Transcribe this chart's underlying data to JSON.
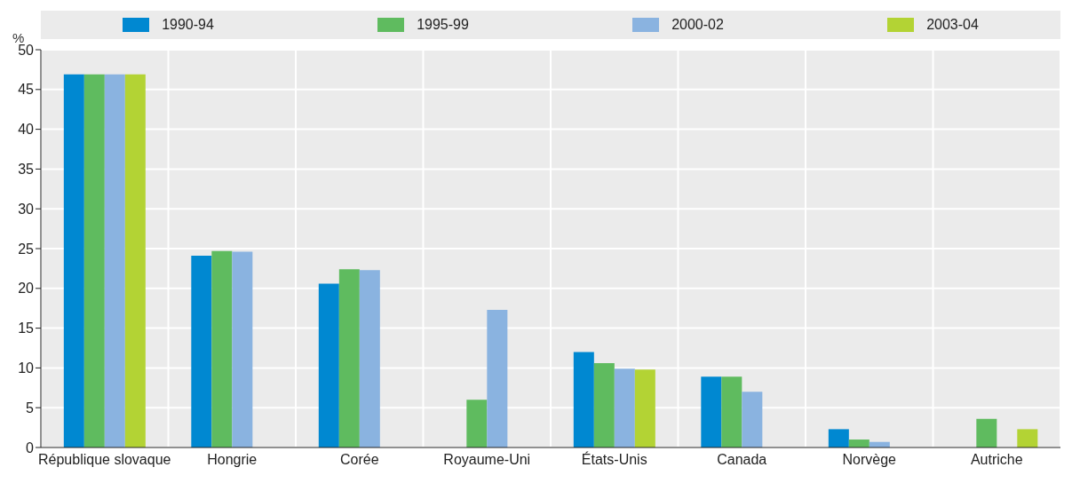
{
  "chart_data": {
    "type": "bar",
    "ylabel": "%",
    "categories": [
      "République slovaque",
      "Hongrie",
      "Corée",
      "Royaume-Uni",
      "États-Unis",
      "Canada",
      "Norvège",
      "Autriche"
    ],
    "series": [
      {
        "name": "1990-94",
        "color": "#0088d1",
        "values": [
          46.9,
          24.1,
          20.6,
          null,
          12.0,
          8.9,
          2.3,
          null
        ]
      },
      {
        "name": "1995-99",
        "color": "#5fbb5f",
        "values": [
          46.9,
          24.7,
          22.4,
          6.0,
          10.6,
          8.9,
          1.0,
          3.6
        ]
      },
      {
        "name": "2000-02",
        "color": "#8ab3e0",
        "values": [
          46.9,
          24.6,
          22.3,
          17.3,
          9.9,
          7.0,
          0.7,
          null
        ]
      },
      {
        "name": "2003-04",
        "color": "#b3d334",
        "values": [
          46.9,
          null,
          null,
          null,
          9.8,
          null,
          null,
          2.3
        ]
      }
    ],
    "ylim": [
      0,
      50
    ],
    "yticks": [
      0,
      5,
      10,
      15,
      20,
      25,
      30,
      35,
      40,
      45,
      50
    ],
    "grid": true,
    "legend": "top"
  }
}
